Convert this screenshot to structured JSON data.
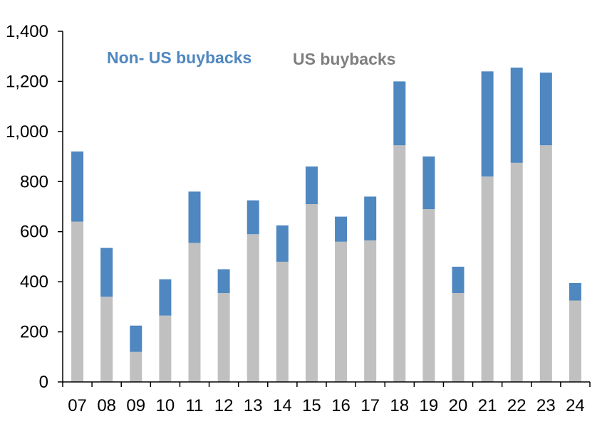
{
  "chart_data": {
    "type": "bar",
    "stacked": true,
    "title": "",
    "xlabel": "",
    "ylabel": "",
    "ylim": [
      0,
      1400
    ],
    "yticks": [
      0,
      200,
      400,
      600,
      800,
      1000,
      1200,
      1400
    ],
    "ytick_labels": [
      "0",
      "200",
      "400",
      "600",
      "800",
      "1,000",
      "1,200",
      "1,400"
    ],
    "grid": false,
    "legend_position": "top",
    "categories": [
      "07",
      "08",
      "09",
      "10",
      "11",
      "12",
      "13",
      "14",
      "15",
      "16",
      "17",
      "18",
      "19",
      "20",
      "21",
      "22",
      "23",
      "24"
    ],
    "series": [
      {
        "name": "US buybacks",
        "color": "#c0c0c0",
        "label_color": "#7f7f7f",
        "values": [
          640,
          340,
          120,
          265,
          555,
          355,
          590,
          480,
          710,
          560,
          565,
          945,
          690,
          355,
          820,
          875,
          945,
          325
        ]
      },
      {
        "name": "Non- US buybacks",
        "color": "#4f87c0",
        "label_color": "#4f87c0",
        "values": [
          280,
          195,
          105,
          145,
          205,
          95,
          135,
          145,
          150,
          100,
          175,
          255,
          210,
          105,
          420,
          380,
          290,
          70
        ]
      }
    ]
  }
}
